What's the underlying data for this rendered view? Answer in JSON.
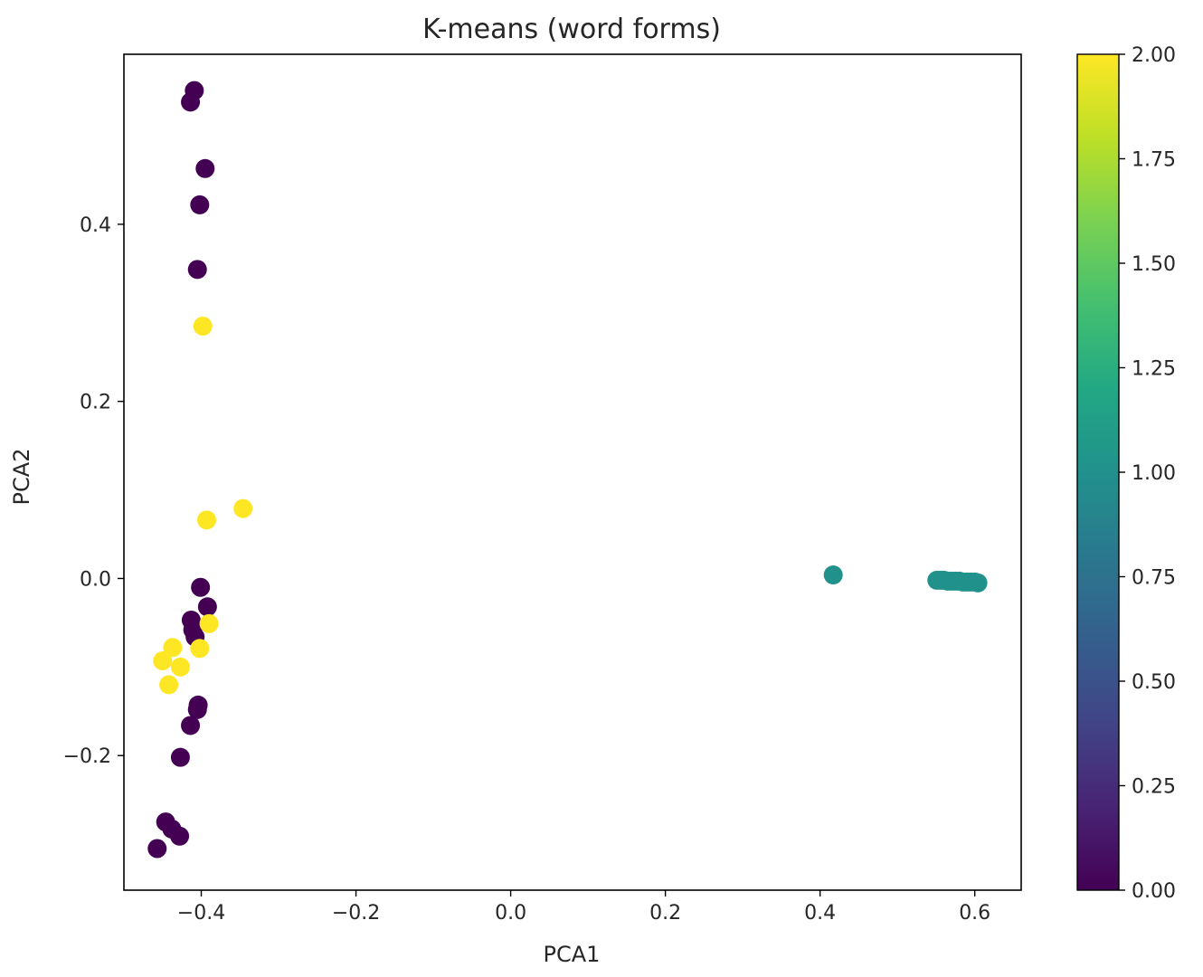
{
  "chart_data": {
    "type": "scatter",
    "title": "K-means (word forms)",
    "xlabel": "PCA1",
    "ylabel": "PCA2",
    "xlim": [
      -0.5,
      0.66
    ],
    "ylim": [
      -0.352,
      0.592
    ],
    "xticks": [
      -0.4,
      -0.2,
      0.0,
      0.2,
      0.4,
      0.6
    ],
    "xtick_labels": [
      "−0.4",
      "−0.2",
      "0.0",
      "0.2",
      "0.4",
      "0.6"
    ],
    "yticks": [
      -0.2,
      0.0,
      0.2,
      0.4
    ],
    "ytick_labels": [
      "−0.2",
      "0.0",
      "0.2",
      "0.4"
    ],
    "grid": false,
    "colormap": "viridis",
    "colorbar": {
      "range": [
        0.0,
        2.0
      ],
      "ticks": [
        0.0,
        0.25,
        0.5,
        0.75,
        1.0,
        1.25,
        1.5,
        1.75,
        2.0
      ],
      "tick_labels": [
        "0.00",
        "0.25",
        "0.50",
        "0.75",
        "1.00",
        "1.25",
        "1.50",
        "1.75",
        "2.00"
      ]
    },
    "cluster_colors": [
      "#440154",
      "#21918c",
      "#fde725"
    ],
    "points": [
      {
        "x": -0.409,
        "y": 0.551,
        "c": 0
      },
      {
        "x": -0.414,
        "y": 0.538,
        "c": 0
      },
      {
        "x": -0.395,
        "y": 0.463,
        "c": 0
      },
      {
        "x": -0.402,
        "y": 0.422,
        "c": 0
      },
      {
        "x": -0.405,
        "y": 0.349,
        "c": 0
      },
      {
        "x": -0.401,
        "y": -0.01,
        "c": 0
      },
      {
        "x": -0.392,
        "y": -0.032,
        "c": 0
      },
      {
        "x": -0.413,
        "y": -0.047,
        "c": 0
      },
      {
        "x": -0.411,
        "y": -0.058,
        "c": 0
      },
      {
        "x": -0.408,
        "y": -0.066,
        "c": 0
      },
      {
        "x": -0.404,
        "y": -0.143,
        "c": 0
      },
      {
        "x": -0.405,
        "y": -0.148,
        "c": 0
      },
      {
        "x": -0.414,
        "y": -0.166,
        "c": 0
      },
      {
        "x": -0.427,
        "y": -0.202,
        "c": 0
      },
      {
        "x": -0.446,
        "y": -0.275,
        "c": 0
      },
      {
        "x": -0.438,
        "y": -0.283,
        "c": 0
      },
      {
        "x": -0.428,
        "y": -0.291,
        "c": 0
      },
      {
        "x": -0.457,
        "y": -0.305,
        "c": 0
      },
      {
        "x": 0.417,
        "y": 0.004,
        "c": 1
      },
      {
        "x": 0.551,
        "y": -0.002,
        "c": 1
      },
      {
        "x": 0.556,
        "y": -0.002,
        "c": 1
      },
      {
        "x": 0.56,
        "y": -0.002,
        "c": 1
      },
      {
        "x": 0.565,
        "y": -0.003,
        "c": 1
      },
      {
        "x": 0.57,
        "y": -0.003,
        "c": 1
      },
      {
        "x": 0.575,
        "y": -0.003,
        "c": 1
      },
      {
        "x": 0.58,
        "y": -0.003,
        "c": 1
      },
      {
        "x": 0.585,
        "y": -0.004,
        "c": 1
      },
      {
        "x": 0.59,
        "y": -0.004,
        "c": 1
      },
      {
        "x": 0.595,
        "y": -0.004,
        "c": 1
      },
      {
        "x": 0.6,
        "y": -0.004,
        "c": 1
      },
      {
        "x": 0.604,
        "y": -0.005,
        "c": 1
      },
      {
        "x": -0.398,
        "y": 0.285,
        "c": 2
      },
      {
        "x": -0.393,
        "y": 0.066,
        "c": 2
      },
      {
        "x": -0.346,
        "y": 0.079,
        "c": 2
      },
      {
        "x": -0.39,
        "y": -0.051,
        "c": 2
      },
      {
        "x": -0.402,
        "y": -0.079,
        "c": 2
      },
      {
        "x": -0.437,
        "y": -0.078,
        "c": 2
      },
      {
        "x": -0.45,
        "y": -0.093,
        "c": 2
      },
      {
        "x": -0.427,
        "y": -0.1,
        "c": 2
      },
      {
        "x": -0.442,
        "y": -0.12,
        "c": 2
      }
    ]
  }
}
